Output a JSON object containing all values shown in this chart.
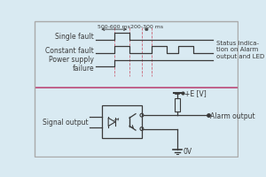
{
  "bg_color": "#d9eaf2",
  "border_color": "#999999",
  "line_color": "#3a3a3a",
  "pink_line_color": "#c0608a",
  "dashed_color": "#cc6677",
  "labels_left": [
    "Single fault",
    "Constant fault",
    "Power supply\nfailure"
  ],
  "label_right": "Status indica-\ntion on Alarm\noutput and LED",
  "timing_label1": "500-600 ms",
  "timing_label2": "200-300 ms",
  "bottom_labels": {
    "signal_output": "Signal output",
    "alarm_output": "Alarm output",
    "plus_e": "+E [V]",
    "ov": "0V"
  },
  "figsize": [
    3.0,
    2.01
  ],
  "dpi": 100
}
